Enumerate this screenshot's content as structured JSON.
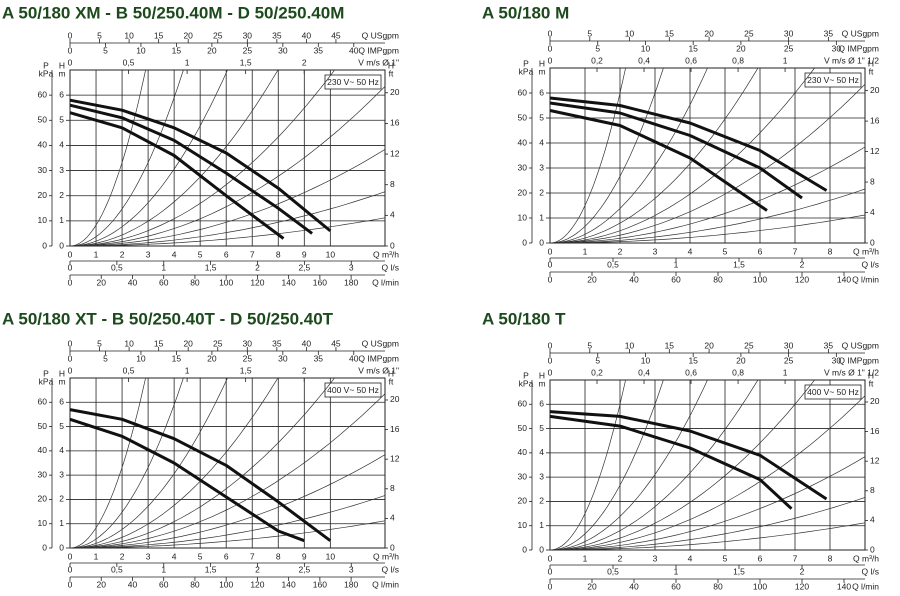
{
  "chart_data": [
    {
      "type": "line",
      "title": "A 50/180 XM - B 50/250.40M - D 50/250.40M",
      "supply": "230 V~ 50 Hz",
      "x_label": "Q m³/h",
      "xlim": [
        0,
        12.1
      ],
      "xticks": [
        0,
        1,
        2,
        3,
        4,
        5,
        6,
        7,
        8,
        9,
        10
      ],
      "y_label": "H",
      "y_unit": "m",
      "ylim": [
        0,
        7
      ],
      "yticks": [
        0,
        1,
        2,
        3,
        4,
        5,
        6
      ],
      "grid": true,
      "kpa_axis": {
        "label": "P",
        "unit": "kPa",
        "lim": [
          0,
          70
        ],
        "ticks": [
          0,
          10,
          20,
          30,
          40,
          50,
          60
        ]
      },
      "ft_axis": {
        "label": "H",
        "unit": "ft",
        "lim": [
          0,
          22.97
        ],
        "ticks": [
          0,
          4,
          8,
          12,
          16,
          20
        ]
      },
      "usgpm_axis": {
        "label": "Q USgpm",
        "lim": [
          0,
          53.3
        ],
        "ticks": [
          0,
          5,
          10,
          15,
          20,
          25,
          30,
          35,
          40,
          45
        ]
      },
      "impgpm_axis": {
        "label": "Q IMPgpm",
        "lim": [
          0,
          44.4
        ],
        "ticks": [
          0,
          5,
          10,
          15,
          20,
          25,
          30,
          35,
          40
        ]
      },
      "velocity_axis": {
        "label": "V m/s Ø 1\"",
        "lim": [
          0,
          2.69
        ],
        "ticks": [
          0,
          {
            "value": 0.5,
            "label": "0,5"
          },
          1,
          {
            "value": 1.5,
            "label": "1,5"
          },
          2
        ]
      },
      "ls_axis": {
        "label": "Q l/s",
        "lim": [
          0,
          3.36
        ],
        "ticks": [
          0,
          {
            "value": 0.5,
            "label": "0,5"
          },
          1,
          {
            "value": 1.5,
            "label": "1,5"
          },
          2,
          {
            "value": 2.5,
            "label": "2,5"
          },
          3
        ]
      },
      "lmin_axis": {
        "label": "Q l/min",
        "lim": [
          0,
          201.7
        ],
        "ticks": [
          0,
          20,
          40,
          60,
          80,
          100,
          120,
          140,
          160,
          180
        ]
      },
      "series": [
        {
          "color": "#111111",
          "x": [
            0,
            2,
            4,
            6,
            8.2
          ],
          "values": [
            5.3,
            4.7,
            3.6,
            2.0,
            0.3
          ]
        },
        {
          "color": "#111111",
          "x": [
            0,
            2,
            4,
            6,
            8,
            9.3
          ],
          "values": [
            5.6,
            5.1,
            4.2,
            2.9,
            1.5,
            0.5
          ]
        },
        {
          "color": "#111111",
          "x": [
            0,
            2,
            4,
            6,
            8,
            10
          ],
          "values": [
            5.8,
            5.4,
            4.7,
            3.7,
            2.3,
            0.6
          ]
        }
      ]
    },
    {
      "type": "line",
      "title": "A 50/180 M",
      "supply": "230 V~ 50 Hz",
      "x_label": "Q m³/h",
      "xlim": [
        0,
        9
      ],
      "xticks": [
        0,
        1,
        2,
        3,
        4,
        5,
        6,
        7,
        8
      ],
      "y_label": "H",
      "y_unit": "m",
      "ylim": [
        0,
        7
      ],
      "yticks": [
        0,
        1,
        2,
        3,
        4,
        5,
        6
      ],
      "grid": true,
      "kpa_axis": {
        "label": "P",
        "unit": "kPa",
        "lim": [
          0,
          70
        ],
        "ticks": [
          0,
          10,
          20,
          30,
          40,
          50,
          60
        ]
      },
      "ft_axis": {
        "label": "H",
        "unit": "ft",
        "lim": [
          0,
          22.97
        ],
        "ticks": [
          0,
          4,
          8,
          12,
          16,
          20
        ]
      },
      "usgpm_axis": {
        "label": "Q USgpm",
        "lim": [
          0,
          39.6
        ],
        "ticks": [
          0,
          5,
          10,
          15,
          20,
          25,
          30,
          35
        ]
      },
      "impgpm_axis": {
        "label": "Q IMPgpm",
        "lim": [
          0,
          33
        ],
        "ticks": [
          0,
          5,
          10,
          15,
          20,
          25,
          30
        ]
      },
      "velocity_axis": {
        "label": "V m/s Ø 1\" 1/2",
        "lim": [
          0,
          1.34
        ],
        "ticks": [
          0,
          {
            "value": 0.2,
            "label": "0,2"
          },
          {
            "value": 0.4,
            "label": "0,4"
          },
          {
            "value": 0.6,
            "label": "0,6"
          },
          {
            "value": 0.8,
            "label": "0,8"
          },
          1
        ]
      },
      "ls_axis": {
        "label": "Q l/s",
        "lim": [
          0,
          2.5
        ],
        "ticks": [
          0,
          {
            "value": 0.5,
            "label": "0,5"
          },
          1,
          {
            "value": 1.5,
            "label": "1,5"
          },
          2
        ]
      },
      "lmin_axis": {
        "label": "Q l/min",
        "lim": [
          0,
          150
        ],
        "ticks": [
          0,
          20,
          40,
          60,
          80,
          100,
          120,
          140
        ]
      },
      "series": [
        {
          "color": "#111111",
          "x": [
            0,
            2,
            4,
            6.2
          ],
          "values": [
            5.3,
            4.7,
            3.4,
            1.3
          ]
        },
        {
          "color": "#111111",
          "x": [
            0,
            2,
            4,
            6,
            7.2
          ],
          "values": [
            5.6,
            5.2,
            4.3,
            3.0,
            1.8
          ]
        },
        {
          "color": "#111111",
          "x": [
            0,
            2,
            4,
            6,
            7.9
          ],
          "values": [
            5.8,
            5.5,
            4.8,
            3.7,
            2.1
          ]
        }
      ]
    },
    {
      "type": "line",
      "title": "A 50/180 XT - B 50/250.40T - D 50/250.40T",
      "supply": "400 V~ 50 Hz",
      "x_label": "Q m³/h",
      "xlim": [
        0,
        12.1
      ],
      "xticks": [
        0,
        1,
        2,
        3,
        4,
        5,
        6,
        7,
        8,
        9,
        10
      ],
      "y_label": "H",
      "y_unit": "m",
      "ylim": [
        0,
        7
      ],
      "yticks": [
        0,
        1,
        2,
        3,
        4,
        5,
        6
      ],
      "grid": true,
      "kpa_axis": {
        "label": "P",
        "unit": "kPa",
        "lim": [
          0,
          70
        ],
        "ticks": [
          0,
          10,
          20,
          30,
          40,
          50,
          60
        ]
      },
      "ft_axis": {
        "label": "H",
        "unit": "ft",
        "lim": [
          0,
          22.97
        ],
        "ticks": [
          0,
          4,
          8,
          12,
          16,
          20
        ]
      },
      "usgpm_axis": {
        "label": "Q USgpm",
        "lim": [
          0,
          53.3
        ],
        "ticks": [
          0,
          5,
          10,
          15,
          20,
          25,
          30,
          35,
          40,
          45
        ]
      },
      "impgpm_axis": {
        "label": "Q IMPgpm",
        "lim": [
          0,
          44.4
        ],
        "ticks": [
          0,
          5,
          10,
          15,
          20,
          25,
          30,
          35,
          40
        ]
      },
      "velocity_axis": {
        "label": "V m/s Ø 1\"",
        "lim": [
          0,
          2.69
        ],
        "ticks": [
          0,
          {
            "value": 0.5,
            "label": "0,5"
          },
          1,
          {
            "value": 1.5,
            "label": "1,5"
          },
          2
        ]
      },
      "ls_axis": {
        "label": "Q l/s",
        "lim": [
          0,
          3.36
        ],
        "ticks": [
          0,
          {
            "value": 0.5,
            "label": "0,5"
          },
          1,
          {
            "value": 1.5,
            "label": "1,5"
          },
          2,
          {
            "value": 2.5,
            "label": "2,5"
          },
          3
        ]
      },
      "lmin_axis": {
        "label": "Q l/min",
        "lim": [
          0,
          201.7
        ],
        "ticks": [
          0,
          20,
          40,
          60,
          80,
          100,
          120,
          140,
          160,
          180
        ]
      },
      "series": [
        {
          "color": "#111111",
          "x": [
            0,
            2,
            4,
            6,
            8,
            9
          ],
          "values": [
            5.3,
            4.6,
            3.5,
            2.1,
            0.7,
            0.3
          ]
        },
        {
          "color": "#111111",
          "x": [
            0,
            2,
            4,
            6,
            8,
            10
          ],
          "values": [
            5.7,
            5.3,
            4.5,
            3.4,
            1.9,
            0.3
          ]
        }
      ]
    },
    {
      "type": "line",
      "title": "A 50/180 T",
      "supply": "400 V~ 50 Hz",
      "x_label": "Q m³/h",
      "xlim": [
        0,
        9
      ],
      "xticks": [
        0,
        1,
        2,
        3,
        4,
        5,
        6,
        7,
        8
      ],
      "y_label": "H",
      "y_unit": "m",
      "ylim": [
        0,
        7
      ],
      "yticks": [
        0,
        1,
        2,
        3,
        4,
        5,
        6
      ],
      "grid": true,
      "kpa_axis": {
        "label": "P",
        "unit": "kPa",
        "lim": [
          0,
          70
        ],
        "ticks": [
          0,
          10,
          20,
          30,
          40,
          50,
          60
        ]
      },
      "ft_axis": {
        "label": "H",
        "unit": "ft",
        "lim": [
          0,
          22.97
        ],
        "ticks": [
          0,
          4,
          8,
          12,
          16,
          20
        ]
      },
      "usgpm_axis": {
        "label": "Q USgpm",
        "lim": [
          0,
          39.6
        ],
        "ticks": [
          0,
          5,
          10,
          15,
          20,
          25,
          30,
          35
        ]
      },
      "impgpm_axis": {
        "label": "Q IMPgpm",
        "lim": [
          0,
          33
        ],
        "ticks": [
          0,
          5,
          10,
          15,
          20,
          25,
          30
        ]
      },
      "velocity_axis": {
        "label": "V m/s Ø 1\" 1/2",
        "lim": [
          0,
          1.34
        ],
        "ticks": [
          0,
          {
            "value": 0.2,
            "label": "0,2"
          },
          {
            "value": 0.4,
            "label": "0,4"
          },
          {
            "value": 0.6,
            "label": "0,6"
          },
          {
            "value": 0.8,
            "label": "0,8"
          },
          1
        ]
      },
      "ls_axis": {
        "label": "Q l/s",
        "lim": [
          0,
          2.5
        ],
        "ticks": [
          0,
          {
            "value": 0.5,
            "label": "0,5"
          },
          1,
          {
            "value": 1.5,
            "label": "1,5"
          },
          2
        ]
      },
      "lmin_axis": {
        "label": "Q l/min",
        "lim": [
          0,
          150
        ],
        "ticks": [
          0,
          20,
          40,
          60,
          80,
          100,
          120,
          140
        ]
      },
      "series": [
        {
          "color": "#111111",
          "x": [
            0,
            2,
            4,
            6,
            6.9
          ],
          "values": [
            5.5,
            5.1,
            4.2,
            2.9,
            1.7
          ]
        },
        {
          "color": "#111111",
          "x": [
            0,
            2,
            4,
            6,
            7.9
          ],
          "values": [
            5.7,
            5.5,
            4.9,
            3.9,
            2.1
          ]
        }
      ]
    }
  ]
}
